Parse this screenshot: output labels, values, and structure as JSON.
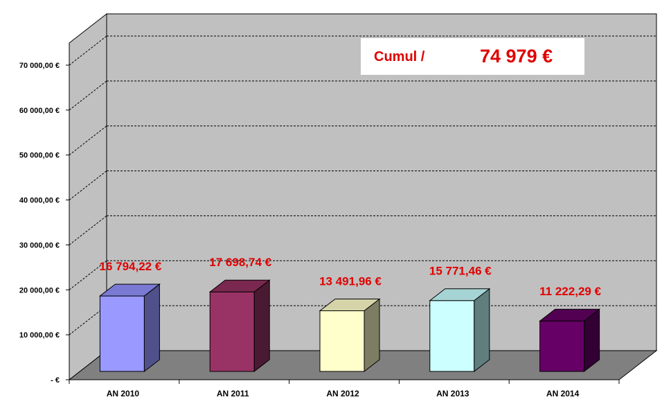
{
  "chart_data": {
    "type": "bar",
    "categories": [
      "AN 2010",
      "AN 2011",
      "AN 2012",
      "AN 2013",
      "AN 2014"
    ],
    "values": [
      16794.22,
      17698.74,
      13491.96,
      15771.46,
      11222.29
    ],
    "value_labels": [
      "16 794,22 €",
      "17 698,74 €",
      "13 491,96 €",
      "15 771,46 €",
      "11 222,29 €"
    ],
    "y_ticks": [
      0,
      10000,
      20000,
      30000,
      40000,
      50000,
      60000,
      70000
    ],
    "y_tick_labels": [
      "-   €",
      "10 000,00 €",
      "20 000,00 €",
      "30 000,00 €",
      "40 000,00 €",
      "50 000,00 €",
      "60 000,00 €",
      "70 000,00 €"
    ],
    "ylim": [
      0,
      75000
    ],
    "grid": true,
    "three_d": true,
    "colors": {
      "wall": "#c0c0c0",
      "floor": "#808080",
      "bars": [
        "#9999ff",
        "#993366",
        "#ffffcc",
        "#ccffff",
        "#660066"
      ],
      "bar_sides": [
        "#50508a",
        "#4a1a32",
        "#7d7d63",
        "#607e7e",
        "#330033"
      ],
      "bar_tops": [
        "#7a7ad4",
        "#7a2850",
        "#d4d4a8",
        "#a6d4d4",
        "#520052"
      ],
      "label": "#e00000"
    },
    "annotation": {
      "label": "Cumul /",
      "value": "74 979 €"
    }
  }
}
